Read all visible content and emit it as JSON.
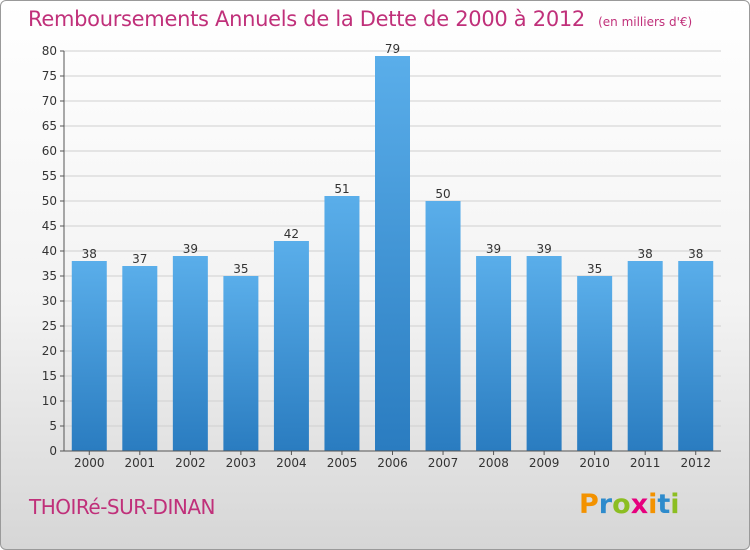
{
  "chart_data": {
    "type": "bar",
    "title": "Remboursements Annuels de la Dette de 2000 à 2012",
    "subtitle": "(en milliers d'€)",
    "categories": [
      "2000",
      "2001",
      "2002",
      "2003",
      "2004",
      "2005",
      "2006",
      "2007",
      "2008",
      "2009",
      "2010",
      "2011",
      "2012"
    ],
    "values": [
      38,
      37,
      39,
      35,
      42,
      51,
      79,
      50,
      39,
      39,
      35,
      38,
      38
    ],
    "ylim": [
      0,
      80
    ],
    "ytick_step": 5,
    "grid": "horizontal",
    "bar_color": "#4a9fe0"
  },
  "commune_name": "THOIRé-SUR-DINAN",
  "logo": {
    "text": "Proxiti",
    "colors": [
      "#f39200",
      "#2e8bcc",
      "#8cbe22",
      "#e6007e",
      "#f39200",
      "#2e8bcc",
      "#8cbe22"
    ]
  }
}
